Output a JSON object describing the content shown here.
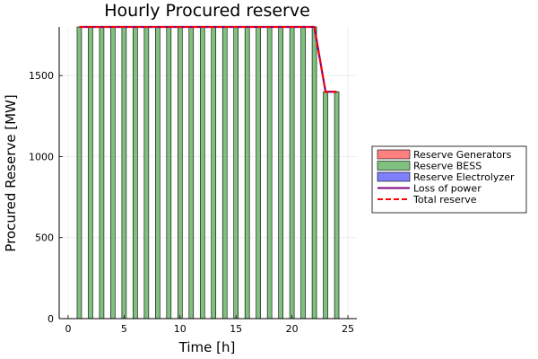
{
  "chart_data": {
    "type": "bar",
    "title": "Hourly Procured reserve",
    "xlabel": "Time [h]",
    "ylabel": "Procured Reserve [MW]",
    "xlim": [
      -0.8,
      25.8
    ],
    "ylim": [
      0,
      1800
    ],
    "xticks": [
      0,
      5,
      10,
      15,
      20,
      25
    ],
    "yticks": [
      0,
      500,
      1000,
      1500
    ],
    "grid": true,
    "legend_position": "outside-right",
    "x": [
      1,
      2,
      3,
      4,
      5,
      6,
      7,
      8,
      9,
      10,
      11,
      12,
      13,
      14,
      15,
      16,
      17,
      18,
      19,
      20,
      21,
      22,
      23,
      24
    ],
    "series": [
      {
        "name": "Reserve Generators",
        "kind": "bar",
        "color": "#ff8080",
        "values": [
          0,
          0,
          0,
          0,
          0,
          0,
          0,
          0,
          0,
          0,
          0,
          0,
          0,
          0,
          0,
          0,
          0,
          0,
          0,
          0,
          0,
          0,
          0,
          0
        ]
      },
      {
        "name": "Reserve BESS",
        "kind": "bar",
        "color": "#80c080",
        "values": [
          1800,
          1800,
          1800,
          1800,
          1800,
          1800,
          1800,
          1800,
          1800,
          1800,
          1800,
          1800,
          1800,
          1800,
          1800,
          1800,
          1800,
          1800,
          1800,
          1800,
          1800,
          1800,
          1400,
          1400
        ]
      },
      {
        "name": "Reserve Electrolyzer",
        "kind": "bar",
        "color": "#8080ff",
        "values": [
          0,
          0,
          0,
          0,
          0,
          0,
          0,
          0,
          0,
          0,
          0,
          0,
          0,
          0,
          0,
          0,
          0,
          0,
          0,
          0,
          0,
          0,
          0,
          0
        ]
      },
      {
        "name": "Loss of power",
        "kind": "line",
        "color": "#800080",
        "values": [
          1800,
          1800,
          1800,
          1800,
          1800,
          1800,
          1800,
          1800,
          1800,
          1800,
          1800,
          1800,
          1800,
          1800,
          1800,
          1800,
          1800,
          1800,
          1800,
          1800,
          1800,
          1800,
          1400,
          1400
        ]
      },
      {
        "name": "Total reserve",
        "kind": "dashed-line",
        "color": "#ff0000",
        "values": [
          1800,
          1800,
          1800,
          1800,
          1800,
          1800,
          1800,
          1800,
          1800,
          1800,
          1800,
          1800,
          1800,
          1800,
          1800,
          1800,
          1800,
          1800,
          1800,
          1800,
          1800,
          1800,
          1400,
          1400
        ]
      }
    ]
  }
}
